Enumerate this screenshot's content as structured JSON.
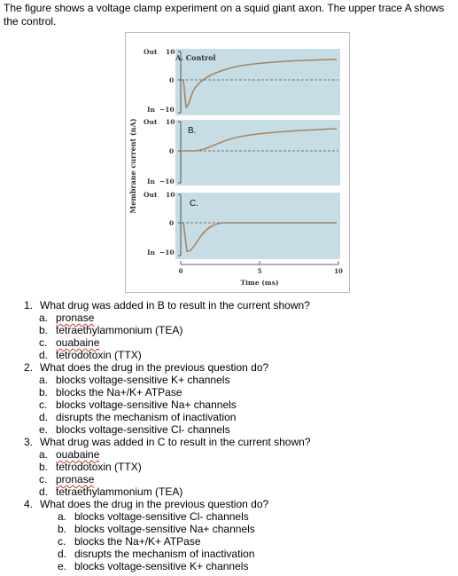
{
  "intro": "The figure shows a voltage clamp experiment on a squid giant axon. The upper trace A shows the control.",
  "figure": {
    "ylabel": "Membrane current (nA)",
    "xlabel": "Time (ms)",
    "x_ticks": [
      "0",
      "5",
      "10"
    ],
    "panels": [
      {
        "label": "A. Control",
        "out": "Out",
        "in": "In",
        "top_value": "10",
        "zero": "0",
        "bottom_value": "−10"
      },
      {
        "label": "B.",
        "out": "Out",
        "in": "In",
        "top_value": "10",
        "zero": "0",
        "bottom_value": "−10"
      },
      {
        "label": "C.",
        "out": "Out",
        "in": "In",
        "top_value": "10",
        "zero": "0",
        "bottom_value": "−10"
      }
    ],
    "colors": {
      "panel": "#c6dde6",
      "trace": "#a9845d"
    }
  },
  "questions": [
    {
      "num": "1.",
      "text": "What drug was added in B to result in the current shown?",
      "options": [
        {
          "letter": "a.",
          "text": "pronase"
        },
        {
          "letter": "b.",
          "text": "tetraethylammonium (TEA)"
        },
        {
          "letter": "c.",
          "text": "ouabaine"
        },
        {
          "letter": "d.",
          "text": "tetrodotoxin (TTX)"
        }
      ]
    },
    {
      "num": "2.",
      "text": "What does the drug in the previous question do?",
      "options": [
        {
          "letter": "a.",
          "text": "blocks voltage-sensitive K+ channels"
        },
        {
          "letter": "b.",
          "text": "blocks the Na+/K+ ATPase"
        },
        {
          "letter": "c.",
          "text": "blocks voltage-sensitive Na+ channels"
        },
        {
          "letter": "d.",
          "text": "disrupts the mechanism of inactivation"
        },
        {
          "letter": "e.",
          "text": "blocks voltage-sensitive Cl- channels"
        }
      ]
    },
    {
      "num": "3.",
      "text": "What drug was added in C to result in the current shown?",
      "options": [
        {
          "letter": "a.",
          "text": "ouabaine"
        },
        {
          "letter": "b.",
          "text": "tetrodotoxin (TTX)"
        },
        {
          "letter": "c.",
          "text": "pronase"
        },
        {
          "letter": "d.",
          "text": "tetraethylammonium (TEA)"
        }
      ]
    },
    {
      "num": "4.",
      "text": "What does the drug in the previous question do?",
      "options": [
        {
          "letter": "a.",
          "text": "blocks voltage-sensitive Cl- channels"
        },
        {
          "letter": "b.",
          "text": "blocks voltage-sensitive Na+ channels"
        },
        {
          "letter": "c.",
          "text": "blocks the Na+/K+ ATPase"
        },
        {
          "letter": "d.",
          "text": "disrupts the mechanism of inactivation"
        },
        {
          "letter": "e.",
          "text": "blocks voltage-sensitive K+ channels"
        }
      ]
    }
  ]
}
